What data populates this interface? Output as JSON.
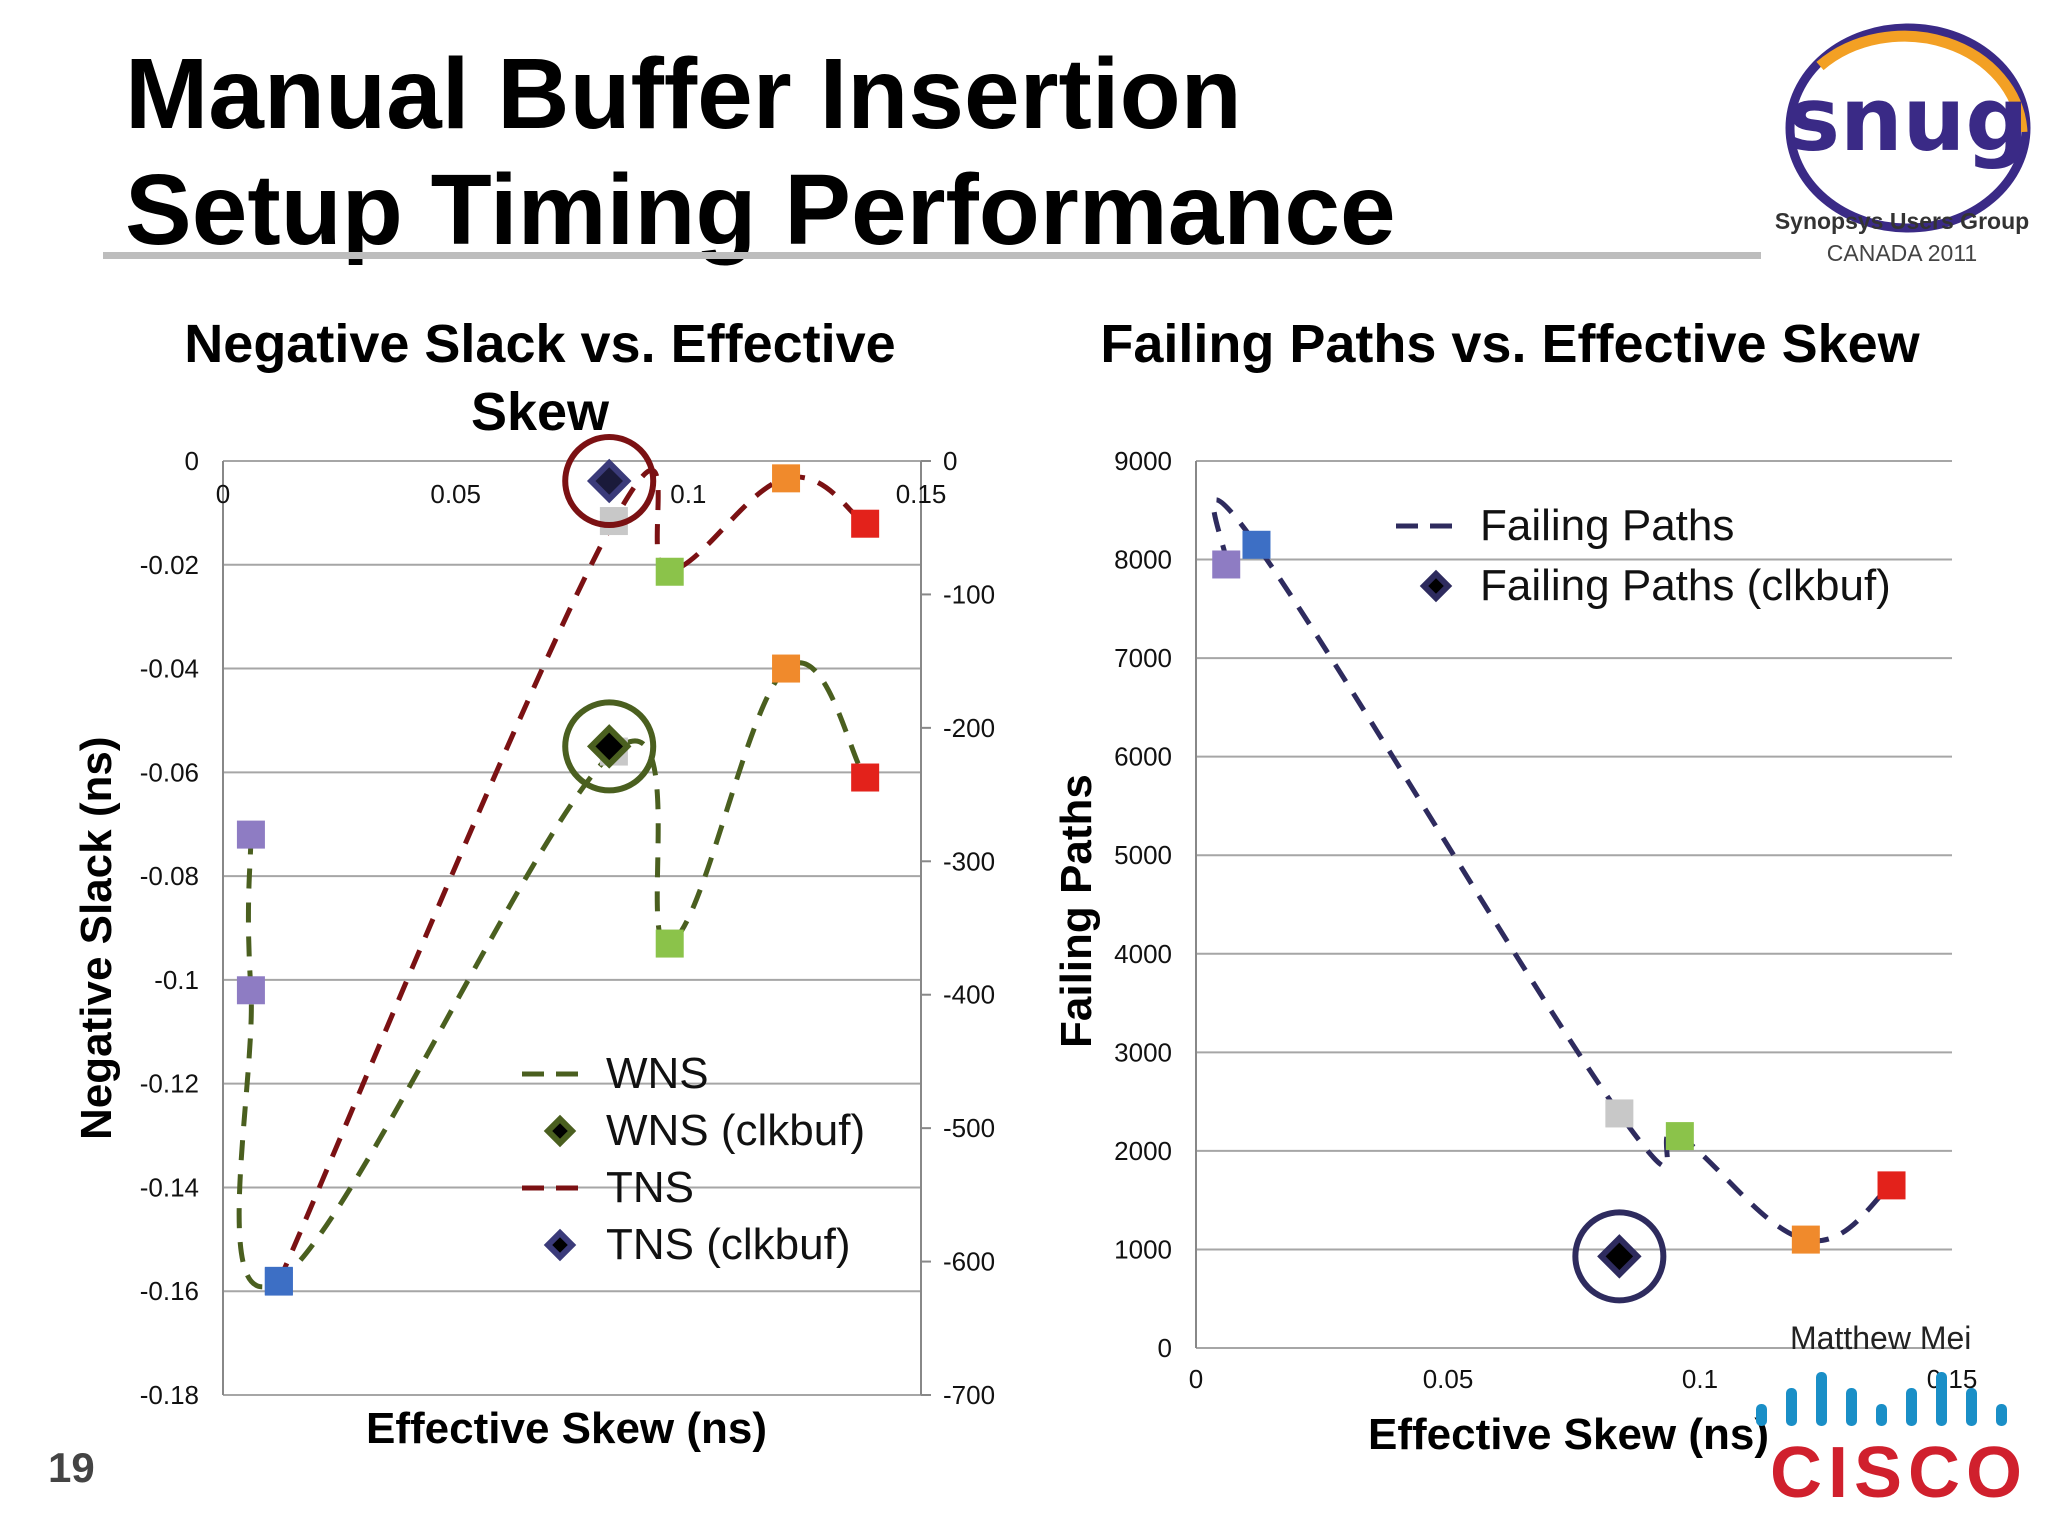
{
  "slide": {
    "title_line1": "Manual Buffer Insertion",
    "title_line2": "Setup Timing Performance",
    "page_number": "19",
    "author": "Matthew Mei"
  },
  "logos": {
    "snug_text": "snug",
    "snug_org": "Synopsys Users Group",
    "snug_event": "CANADA 2011",
    "cisco_text": "CISCO"
  },
  "colors": {
    "wns": "#4a5f1f",
    "tns": "#7b1113",
    "failing": "#2e2b5e",
    "purple": "#8e7cc3",
    "blue": "#3d6fc5",
    "gray": "#c8c8c8",
    "green": "#8bc34a",
    "orange": "#f08a2c",
    "red": "#e3221b"
  },
  "chart_data": [
    {
      "type": "line",
      "title": "Negative Slack vs. Effective Skew",
      "xlabel": "Effective Skew (ns)",
      "ylabel": "Negative Slack (ns)",
      "xlim": [
        0,
        0.15
      ],
      "ylim": [
        -0.18,
        0
      ],
      "y2lim": [
        -700,
        0
      ],
      "x_ticks": [
        "0",
        "0.05",
        "0.1",
        "0.15"
      ],
      "y_ticks": [
        "0",
        "-0.02",
        "-0.04",
        "-0.06",
        "-0.08",
        "-0.1",
        "-0.12",
        "-0.14",
        "-0.16",
        "-0.18"
      ],
      "y2_ticks": [
        "0",
        "-100",
        "-200",
        "-300",
        "-400",
        "-500",
        "-600",
        "-700"
      ],
      "grid": true,
      "legend_position": "bottom-right",
      "series": [
        {
          "name": "WNS",
          "axis": "left",
          "style": "dashed",
          "x": [
            0.006,
            0.006,
            0.012,
            0.084,
            0.096,
            0.121,
            0.138
          ],
          "y": [
            -0.072,
            -0.102,
            -0.158,
            -0.056,
            -0.093,
            -0.04,
            -0.061
          ],
          "marker_colors": [
            "purple",
            "purple",
            "blue",
            "gray",
            "green",
            "orange",
            "red"
          ]
        },
        {
          "name": "WNS (clkbuf)",
          "axis": "left",
          "style": "marker",
          "x": [
            0.083
          ],
          "y": [
            -0.055
          ]
        },
        {
          "name": "TNS",
          "axis": "right",
          "style": "dashed",
          "x": [
            0.012,
            0.084,
            0.096,
            0.121,
            0.138
          ],
          "y": [
            -615,
            -45,
            -83,
            -13,
            -47
          ],
          "marker_colors": [
            "blue",
            "gray",
            "green",
            "orange",
            "red"
          ]
        },
        {
          "name": "TNS (clkbuf)",
          "axis": "right",
          "style": "marker",
          "x": [
            0.083
          ],
          "y": [
            -15
          ]
        }
      ]
    },
    {
      "type": "line",
      "title": "Failing Paths vs. Effective Skew",
      "xlabel": "Effective Skew (ns)",
      "ylabel": "Failing Paths",
      "xlim": [
        0,
        0.15
      ],
      "ylim": [
        0,
        9000
      ],
      "x_ticks": [
        "0",
        "0.05",
        "0.1",
        "0.15"
      ],
      "y_ticks": [
        "0",
        "1000",
        "2000",
        "3000",
        "4000",
        "5000",
        "6000",
        "7000",
        "8000",
        "9000"
      ],
      "grid": true,
      "legend_position": "top-right",
      "series": [
        {
          "name": "Failing Paths",
          "style": "dashed",
          "x": [
            0.006,
            0.012,
            0.084,
            0.096,
            0.121,
            0.138
          ],
          "y": [
            7950,
            8150,
            2380,
            2150,
            1100,
            1650
          ],
          "marker_colors": [
            "purple",
            "blue",
            "gray",
            "green",
            "orange",
            "red"
          ]
        },
        {
          "name": "Failing Paths (clkbuf)",
          "style": "marker",
          "x": [
            0.084
          ],
          "y": [
            930
          ]
        }
      ]
    }
  ]
}
